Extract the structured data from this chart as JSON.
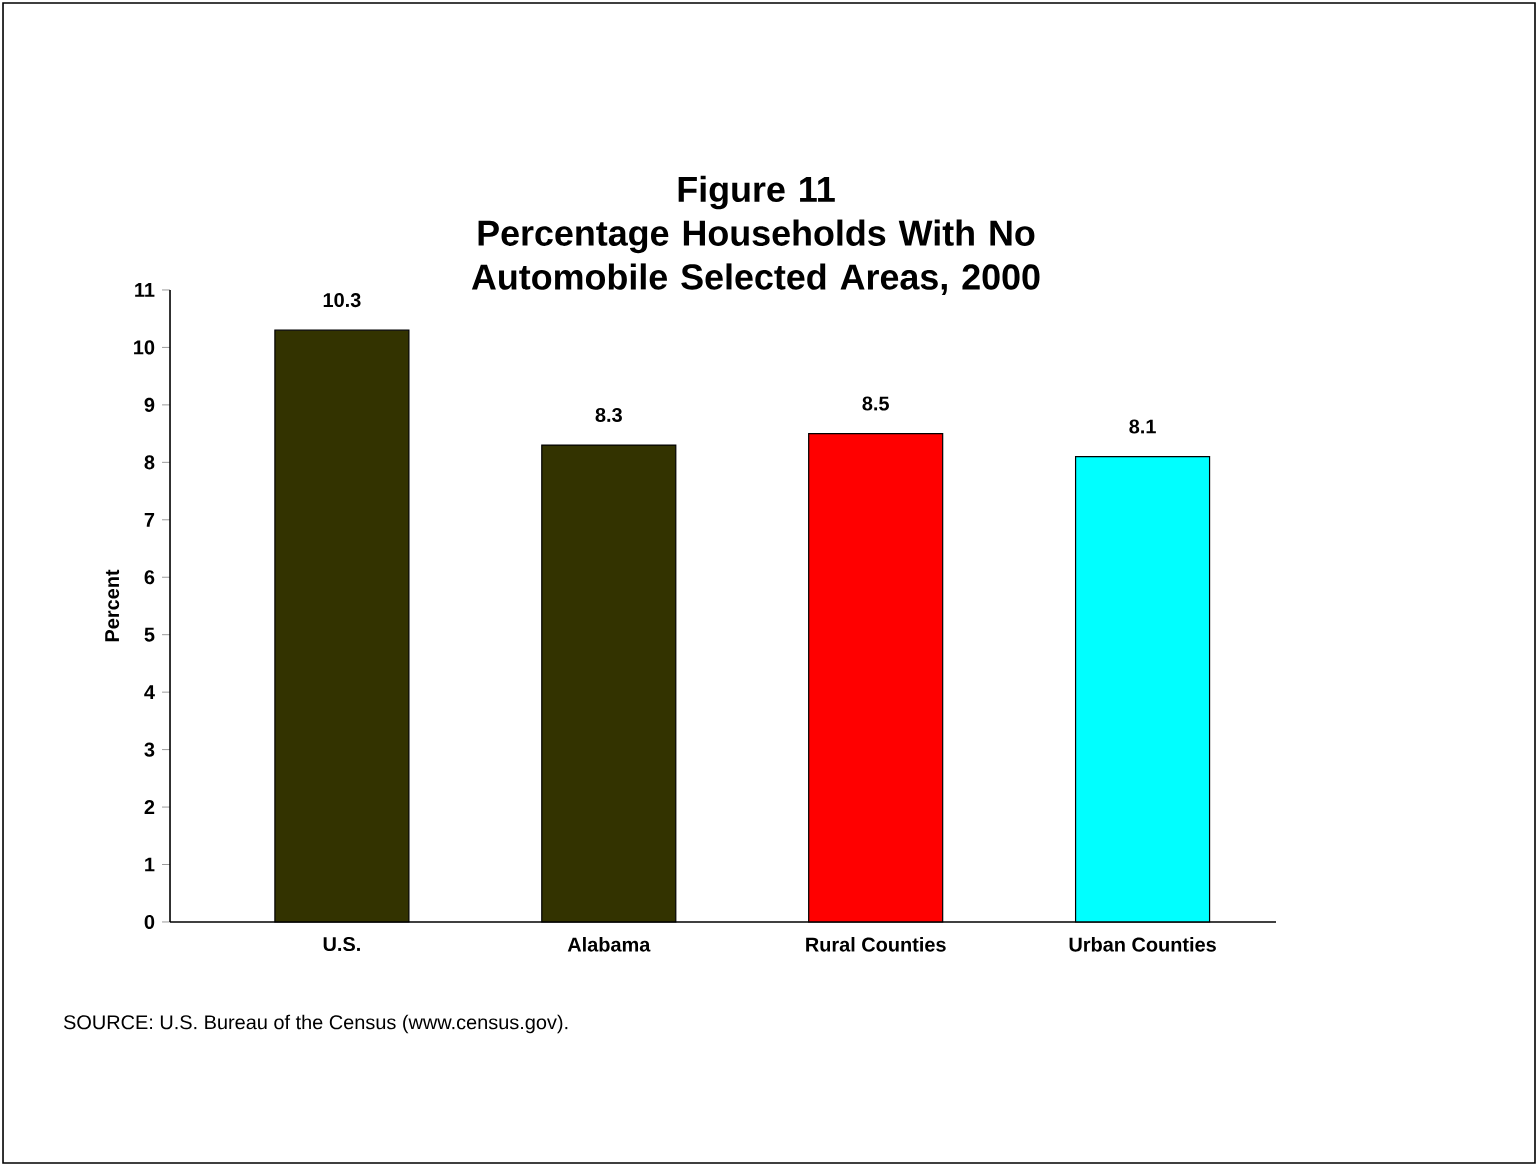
{
  "chart_data": {
    "type": "bar",
    "title": "Figure 11",
    "subtitle": "Percentage Households With No Automobile Selected Areas, 2000",
    "ylabel": "Percent",
    "categories": [
      "U.S.",
      "Alabama",
      "Rural Counties",
      "Urban Counties"
    ],
    "values": [
      10.3,
      8.3,
      8.5,
      8.1
    ],
    "colors": [
      "#333300",
      "#333300",
      "#ff0000",
      "#00ffff"
    ],
    "ylim": [
      0,
      11
    ],
    "yticks": [
      0,
      1,
      2,
      3,
      4,
      5,
      6,
      7,
      8,
      9,
      10,
      11
    ],
    "data_labels": true,
    "annotations": [
      "SOURCE:  U.S. Bureau of the Census (www.census.gov)."
    ]
  }
}
